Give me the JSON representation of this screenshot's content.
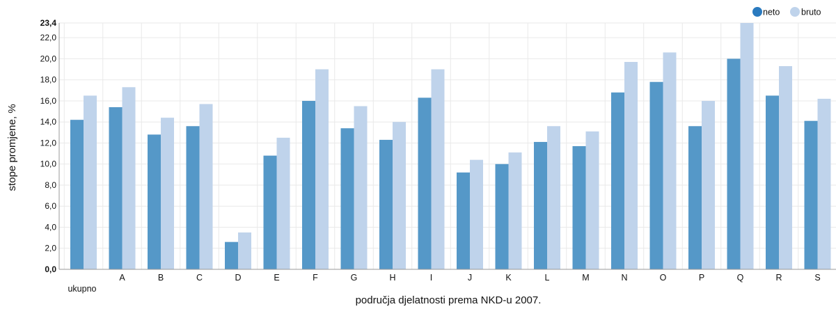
{
  "chart_data": {
    "type": "bar",
    "categories": [
      "ukupno",
      "A",
      "B",
      "C",
      "D",
      "E",
      "F",
      "G",
      "H",
      "I",
      "J",
      "K",
      "L",
      "M",
      "N",
      "O",
      "P",
      "Q",
      "R",
      "S"
    ],
    "series": [
      {
        "name": "neto",
        "color": "#5598c8",
        "values": [
          14.2,
          15.4,
          12.8,
          13.6,
          2.6,
          10.8,
          16.0,
          13.4,
          12.3,
          16.3,
          9.2,
          10.0,
          12.1,
          11.7,
          16.8,
          17.8,
          13.6,
          20.0,
          16.5,
          14.1
        ]
      },
      {
        "name": "bruto",
        "color": "#bfd3eb",
        "values": [
          16.5,
          17.3,
          14.4,
          15.7,
          3.5,
          12.5,
          19.0,
          15.5,
          14.0,
          19.0,
          10.4,
          11.1,
          13.6,
          13.1,
          19.7,
          20.6,
          16.0,
          23.4,
          19.3,
          16.2
        ]
      }
    ],
    "xlabel": "područja djelatnosti prema NKD-u 2007.",
    "ylabel": "stope promjene, %",
    "ylim": [
      0,
      23.4
    ],
    "yticks": [
      "0,0",
      "2,0",
      "4,0",
      "6,0",
      "8,0",
      "10,0",
      "12,0",
      "14,0",
      "16,0",
      "18,0",
      "20,0",
      "22,0",
      "23,4"
    ],
    "grid": true,
    "legend_position": "top-right"
  }
}
